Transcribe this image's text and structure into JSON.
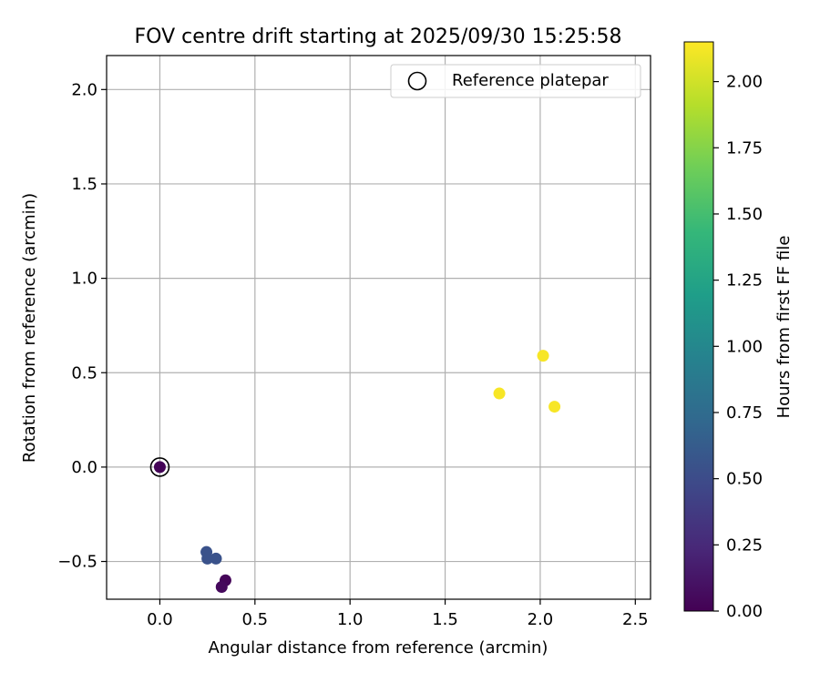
{
  "chart_data": {
    "type": "scatter",
    "title": "FOV centre drift starting at 2025/09/30 15:25:58",
    "xlabel": "Angular distance from reference (arcmin)",
    "ylabel": "Rotation from reference (arcmin)",
    "xlim": [
      -0.28,
      2.58
    ],
    "ylim": [
      -0.7,
      2.18
    ],
    "xticks": [
      0.0,
      0.5,
      1.0,
      1.5,
      2.0,
      2.5
    ],
    "xtick_labels": [
      "0.0",
      "0.5",
      "1.0",
      "1.5",
      "2.0",
      "2.5"
    ],
    "yticks": [
      -0.5,
      0.0,
      0.5,
      1.0,
      1.5,
      2.0
    ],
    "ytick_labels": [
      "−0.5",
      "0.0",
      "0.5",
      "1.0",
      "1.5",
      "2.0"
    ],
    "grid": true,
    "legend": {
      "position": "top-right",
      "label": "Reference platepar"
    },
    "reference_point": {
      "x": 0.0,
      "y": 0.0
    },
    "points": [
      {
        "x": 0.0,
        "y": 0.0,
        "hours": 0.02
      },
      {
        "x": 0.345,
        "y": -0.6,
        "hours": 0.03
      },
      {
        "x": 0.325,
        "y": -0.635,
        "hours": 0.05
      },
      {
        "x": 0.245,
        "y": -0.45,
        "hours": 0.55
      },
      {
        "x": 0.25,
        "y": -0.485,
        "hours": 0.55
      },
      {
        "x": 0.295,
        "y": -0.485,
        "hours": 0.55
      },
      {
        "x": 1.785,
        "y": 0.39,
        "hours": 2.13
      },
      {
        "x": 2.015,
        "y": 0.59,
        "hours": 2.13
      },
      {
        "x": 2.075,
        "y": 0.32,
        "hours": 2.13
      }
    ],
    "colorbar": {
      "label": "Hours from first FF file",
      "range": [
        0.0,
        2.15
      ],
      "ticks": [
        0.0,
        0.25,
        0.5,
        0.75,
        1.0,
        1.25,
        1.5,
        1.75,
        2.0
      ],
      "tick_labels": [
        "0.00",
        "0.25",
        "0.50",
        "0.75",
        "1.00",
        "1.25",
        "1.50",
        "1.75",
        "2.00"
      ],
      "colormap": "viridis",
      "stops": [
        "#440154",
        "#482878",
        "#3e4989",
        "#31688e",
        "#26828e",
        "#1f9e89",
        "#35b779",
        "#6ece58",
        "#b5de2b",
        "#fde725"
      ]
    }
  }
}
